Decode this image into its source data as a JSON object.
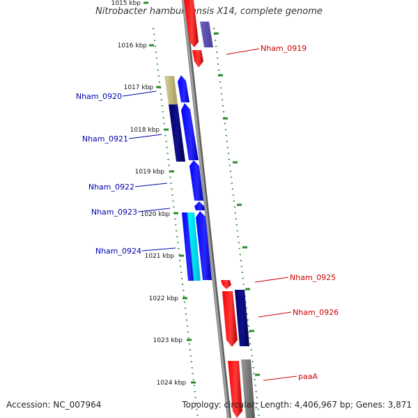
{
  "title": "Nitrobacter hamburgensis X14, complete genome",
  "accession": "Accession: NC_007964",
  "summary": "Topology: circular; Length: 4,406,967 bp; Genes: 3,871",
  "colors": {
    "backbone": "#8a8a8a",
    "scale_dots": "#2a8a2a",
    "forward_label": "#cc0000",
    "reverse_label": "#0000aa"
  },
  "scale": {
    "labels": [
      "1015 kbp",
      "1016 kbp",
      "1017 kbp",
      "1018 kbp",
      "1019 kbp",
      "1020 kbp",
      "1021 kbp",
      "1022 kbp",
      "1023 kbp",
      "1024 kbp"
    ]
  },
  "genes": {
    "left": [
      "Nham_0920",
      "Nham_0921",
      "Nham_0922",
      "Nham_0923",
      "Nham_0924"
    ],
    "right": [
      "Nham_0919",
      "Nham_0925",
      "Nham_0926",
      "paaA"
    ]
  }
}
